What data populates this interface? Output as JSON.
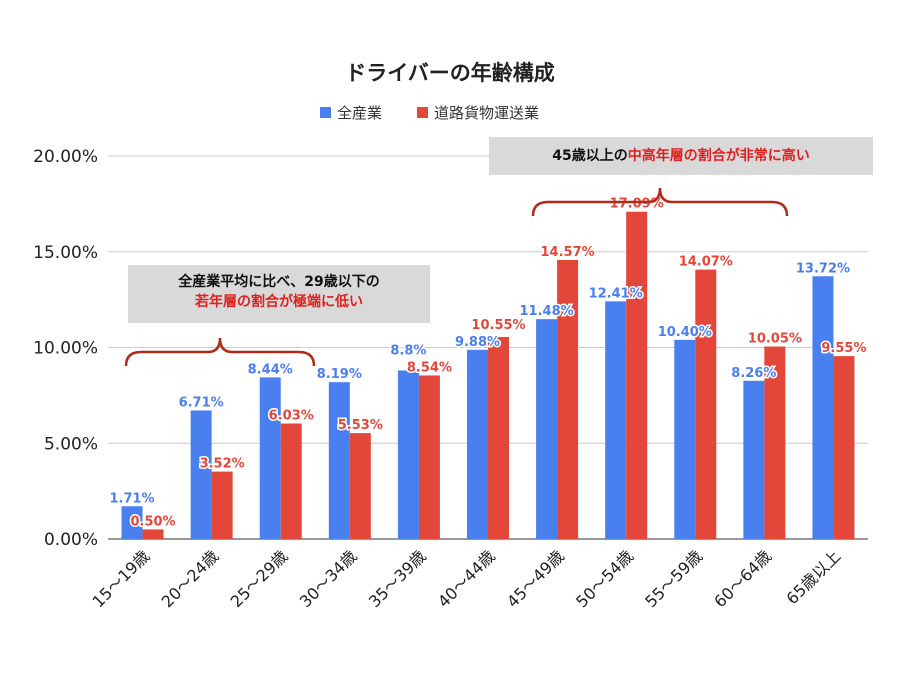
{
  "chart_data": {
    "type": "bar",
    "title": "ドライバーの年齢構成",
    "categories": [
      "15〜19歳",
      "20〜24歳",
      "25〜29歳",
      "30〜34歳",
      "35〜39歳",
      "40〜44歳",
      "45〜49歳",
      "50〜54歳",
      "55〜59歳",
      "60〜64歳",
      "65歳以上"
    ],
    "series": [
      {
        "name": "全産業",
        "color": "#4a7ff0",
        "values": [
          1.71,
          6.71,
          8.44,
          8.19,
          8.8,
          9.88,
          11.48,
          12.41,
          10.4,
          8.26,
          13.72
        ],
        "labels": [
          "1.71%",
          "6.71%",
          "8.44%",
          "8.19%",
          "8.8%",
          "9.88%",
          "11.48%",
          "12.41%",
          "10.40%",
          "8.26%",
          "13.72%"
        ]
      },
      {
        "name": "道路貨物運送業",
        "color": "#e2473a",
        "values": [
          0.5,
          3.52,
          6.03,
          5.53,
          8.54,
          10.55,
          14.57,
          17.09,
          14.07,
          10.05,
          9.55
        ],
        "labels": [
          "0.50%",
          "3.52%",
          "6.03%",
          "5.53%",
          "8.54%",
          "10.55%",
          "14.57%",
          "17.09%",
          "14.07%",
          "10.05%",
          "9.55%"
        ]
      }
    ],
    "yticks": [
      "0.00%",
      "5.00%",
      "10.00%",
      "15.00%",
      "20.00%"
    ],
    "ylim": [
      0,
      20
    ],
    "grid": true,
    "legend": "top-center",
    "annotations": {
      "young_line1": "全産業平均に比べ、29歳以下の",
      "young_line2": "若年層の割合が極端に低い",
      "old_prefix": "45歳以上の",
      "old_red": "中高年層の割合が非常に高い",
      "bracket_color": "#b02a1a"
    }
  }
}
